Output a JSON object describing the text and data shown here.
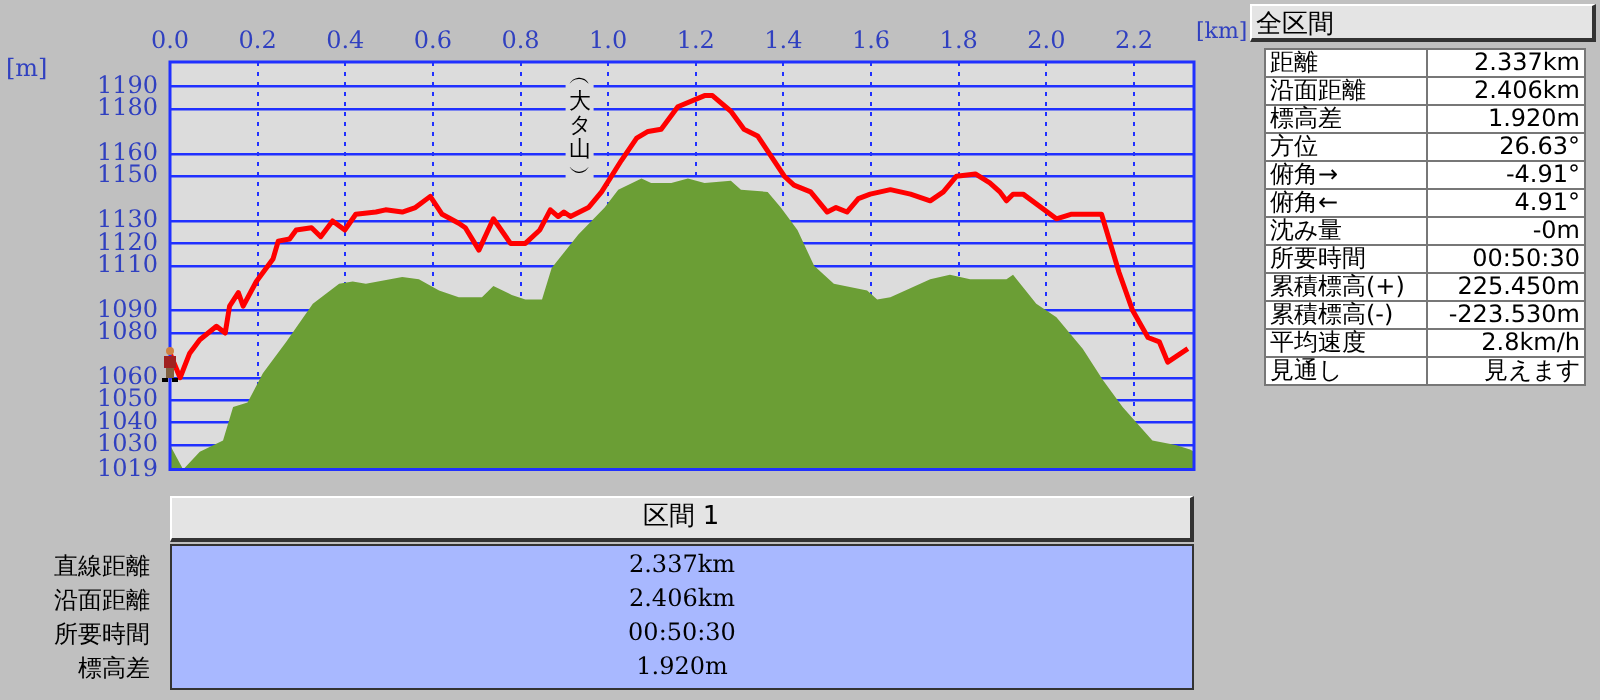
{
  "chart_data": [
    {
      "type": "line",
      "xlabel": "[km]",
      "ylabel": "[m]",
      "xlim": [
        0,
        2.337
      ],
      "ylim": [
        1019,
        1201
      ],
      "xticks": [
        {
          "value": 0,
          "label": "0.0"
        },
        {
          "value": 0.2,
          "label": "0.2"
        },
        {
          "value": 0.4,
          "label": "0.4"
        },
        {
          "value": 0.6,
          "label": "0.6"
        },
        {
          "value": 0.8,
          "label": "0.8"
        },
        {
          "value": 1.0,
          "label": "1.0"
        },
        {
          "value": 1.2,
          "label": "1.2"
        },
        {
          "value": 1.4,
          "label": "1.4"
        },
        {
          "value": 1.6,
          "label": "1.6"
        },
        {
          "value": 1.8,
          "label": "1.8"
        },
        {
          "value": 2.0,
          "label": "2.0"
        },
        {
          "value": 2.2,
          "label": "2.2"
        }
      ],
      "yticks": [
        1019,
        1030,
        1040,
        1050,
        1060,
        1080,
        1090,
        1110,
        1120,
        1130,
        1150,
        1160,
        1180,
        1190
      ],
      "grid": true,
      "legend": false,
      "marker": "none",
      "annotations": [
        "︵大タ山︶"
      ],
      "series": [
        {
          "type": "area",
          "color": "#6b9e35",
          "x": [
            0,
            0.03,
            0.068,
            0.121,
            0.144,
            0.177,
            0.212,
            0.265,
            0.326,
            0.386,
            0.417,
            0.447,
            0.53,
            0.568,
            0.614,
            0.659,
            0.712,
            0.738,
            0.78,
            0.811,
            0.849,
            0.871,
            0.932,
            0.992,
            1.023,
            1.076,
            1.098,
            1.144,
            1.182,
            1.22,
            1.28,
            1.303,
            1.364,
            1.394,
            1.432,
            1.47,
            1.515,
            1.591,
            1.614,
            1.644,
            1.735,
            1.78,
            1.826,
            1.909,
            1.924,
            1.977,
            2.023,
            2.083,
            2.129,
            2.174,
            2.242,
            2.295,
            2.328,
            2.337
          ],
          "values": [
            1030,
            1019,
            1027,
            1032,
            1047,
            1049,
            1062,
            1076,
            1093,
            1102,
            1103,
            1102,
            1105,
            1104,
            1099,
            1096,
            1096,
            1101,
            1097,
            1095,
            1095,
            1109,
            1124,
            1136,
            1144,
            1149,
            1147,
            1147,
            1149,
            1147,
            1148,
            1144,
            1143,
            1136,
            1126,
            1110,
            1102,
            1099,
            1095,
            1096,
            1104,
            1106,
            1104,
            1104,
            1106,
            1093,
            1087,
            1073,
            1059,
            1047,
            1032,
            1030,
            1028,
            1027
          ]
        },
        {
          "type": "line",
          "color": "#ff0000",
          "x": [
            0,
            0.023,
            0.045,
            0.068,
            0.106,
            0.126,
            0.136,
            0.156,
            0.167,
            0.197,
            0.235,
            0.247,
            0.273,
            0.288,
            0.323,
            0.344,
            0.371,
            0.399,
            0.424,
            0.47,
            0.492,
            0.53,
            0.56,
            0.594,
            0.621,
            0.659,
            0.674,
            0.705,
            0.738,
            0.777,
            0.811,
            0.844,
            0.868,
            0.886,
            0.899,
            0.914,
            0.955,
            0.985,
            1.03,
            1.065,
            1.091,
            1.121,
            1.159,
            1.22,
            1.238,
            1.28,
            1.31,
            1.341,
            1.402,
            1.424,
            1.462,
            1.5,
            1.52,
            1.545,
            1.571,
            1.598,
            1.644,
            1.69,
            1.735,
            1.765,
            1.795,
            1.838,
            1.871,
            1.894,
            1.909,
            1.924,
            1.947,
            2.023,
            2.056,
            2.126,
            2.166,
            2.197,
            2.232,
            2.258,
            2.277,
            2.323
          ],
          "values": [
            1071,
            1060,
            1071,
            1077,
            1083,
            1080,
            1092,
            1098,
            1092,
            1103,
            1113,
            1121,
            1122,
            1126,
            1127,
            1123,
            1130,
            1126,
            1133,
            1134,
            1135,
            1134,
            1136,
            1141,
            1133,
            1129,
            1127,
            1117,
            1131,
            1120,
            1120,
            1126,
            1135,
            1132,
            1134,
            1132,
            1136,
            1143,
            1157,
            1167,
            1170,
            1171,
            1181,
            1186,
            1186,
            1179,
            1171,
            1168,
            1150,
            1146,
            1143,
            1134,
            1136,
            1134,
            1140,
            1142,
            1144,
            1142,
            1139,
            1143,
            1150,
            1151,
            1147,
            1143,
            1139,
            1142,
            1142,
            1131,
            1133,
            1133,
            1107,
            1090,
            1078,
            1076,
            1067,
            1073
          ]
        }
      ]
    },
    {
      "type": "other",
      "title": "全区間",
      "annotations": [
        "距離",
        "2.337km",
        "沿面距離",
        "2.406km",
        "標高差",
        "1.920m",
        "方位",
        "26.63°",
        "俯角→",
        "-4.91°",
        "俯角←",
        "4.91°",
        "沈み量",
        "-0m",
        "所要時間",
        "00:50:30",
        "累積標高(+)",
        "225.450m",
        "累積標高(-)",
        "-223.530m",
        "平均速度",
        "2.8km/h",
        "見通し",
        "見えます"
      ]
    },
    {
      "type": "other",
      "title": "区間 1",
      "annotations": [
        "直線距離",
        "2.337km",
        "沿面距離",
        "2.406km",
        "所要時間",
        "00:50:30",
        "標高差",
        "1.920m"
      ]
    }
  ]
}
